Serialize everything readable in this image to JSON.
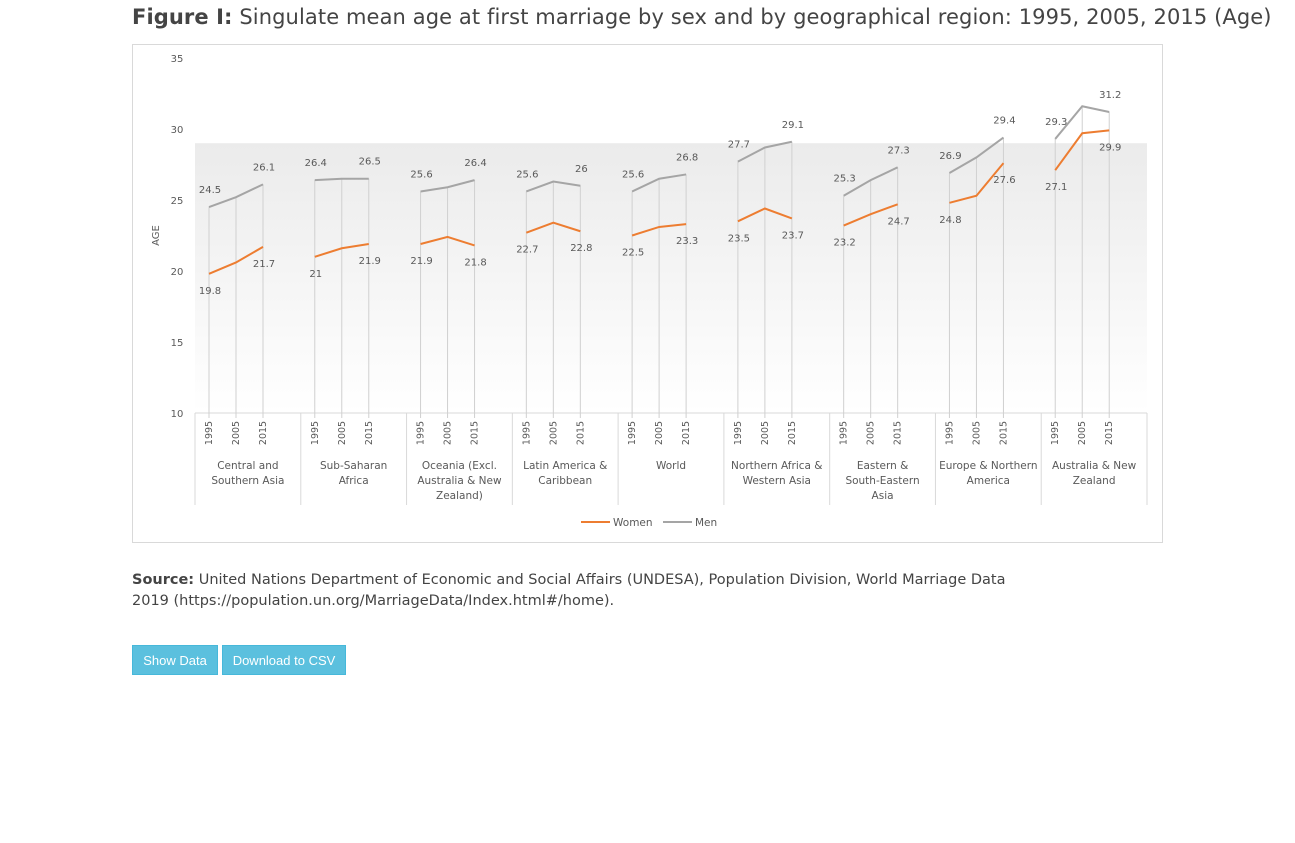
{
  "figure": {
    "label": "Figure I:",
    "title": "Singulate mean age at first marriage by sex and by geographical region: 1995, 2005, 2015 (Age)"
  },
  "chart_data": {
    "type": "line",
    "ylabel": "AGE",
    "ylim": [
      10,
      35
    ],
    "yticks": [
      10,
      15,
      20,
      25,
      30,
      35
    ],
    "years": [
      "1995",
      "2005",
      "2015"
    ],
    "groups": [
      "Central and Southern Asia",
      "Sub-Saharan Africa",
      "Oceania (Excl. Australia & New Zealand)",
      "Latin America & Caribbean",
      "World",
      "Northern Africa & Western Asia",
      "Eastern & South-Eastern Asia",
      "Europe & Northern America",
      "Australia & New Zealand"
    ],
    "series": [
      {
        "name": "Women",
        "color": "#ed7d31",
        "values": [
          [
            19.8,
            20.6,
            21.7
          ],
          [
            21,
            21.6,
            21.9
          ],
          [
            21.9,
            22.4,
            21.8
          ],
          [
            22.7,
            23.4,
            22.8
          ],
          [
            22.5,
            23.1,
            23.3
          ],
          [
            23.5,
            24.4,
            23.7
          ],
          [
            23.2,
            24.0,
            24.7
          ],
          [
            24.8,
            25.3,
            27.6
          ],
          [
            27.1,
            29.7,
            29.9
          ]
        ],
        "labels": [
          [
            "19.8",
            "",
            "21.7"
          ],
          [
            "21",
            "",
            "21.9"
          ],
          [
            "21.9",
            "",
            "21.8"
          ],
          [
            "22.7",
            "",
            "22.8"
          ],
          [
            "22.5",
            "",
            "23.3"
          ],
          [
            "23.5",
            "",
            "23.7"
          ],
          [
            "23.2",
            "",
            "24.7"
          ],
          [
            "24.8",
            "",
            "27.6"
          ],
          [
            "27.1",
            "",
            "29.9"
          ]
        ]
      },
      {
        "name": "Men",
        "color": "#a5a5a5",
        "values": [
          [
            24.5,
            25.2,
            26.1
          ],
          [
            26.4,
            26.5,
            26.5
          ],
          [
            25.6,
            25.9,
            26.4
          ],
          [
            25.6,
            26.3,
            26
          ],
          [
            25.6,
            26.5,
            26.8
          ],
          [
            27.7,
            28.7,
            29.1
          ],
          [
            25.3,
            26.4,
            27.3
          ],
          [
            26.9,
            28.0,
            29.4
          ],
          [
            29.3,
            31.6,
            31.2
          ]
        ],
        "labels": [
          [
            "24.5",
            "",
            "26.1"
          ],
          [
            "26.4",
            "",
            "26.5"
          ],
          [
            "25.6",
            "",
            "26.4"
          ],
          [
            "25.6",
            "",
            "26"
          ],
          [
            "25.6",
            "",
            "26.8"
          ],
          [
            "27.7",
            "",
            "29.1"
          ],
          [
            "25.3",
            "",
            "27.3"
          ],
          [
            "26.9",
            "",
            "29.4"
          ],
          [
            "29.3",
            "",
            "31.2"
          ]
        ]
      }
    ],
    "legend": [
      "Women",
      "Men"
    ],
    "legend_position": "bottom"
  },
  "source": {
    "label": "Source:",
    "text": "United Nations Department of Economic and Social Affairs (UNDESA), Population Division, World Marriage Data 2019 (https://population.un.org/MarriageData/Index.html#/home)."
  },
  "buttons": {
    "show_data": "Show Data",
    "download_csv": "Download to CSV"
  }
}
